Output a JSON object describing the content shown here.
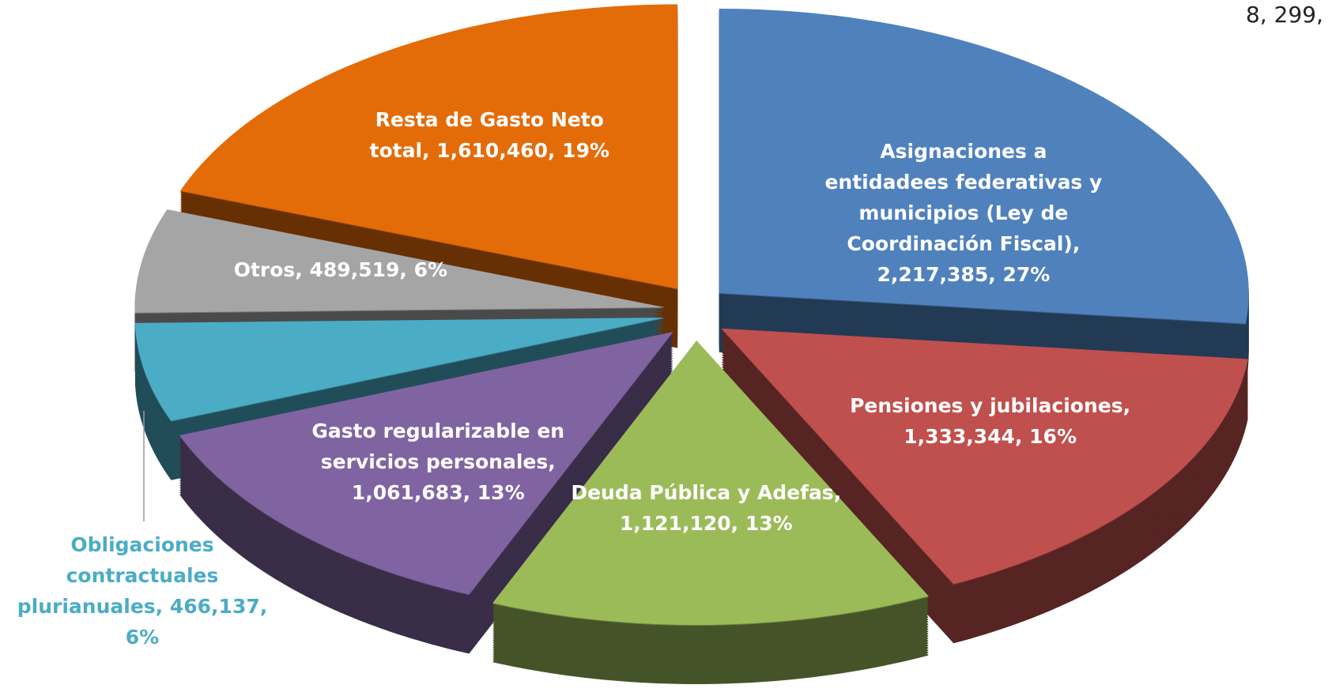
{
  "chart_data": {
    "type": "pie3d",
    "corner_text": "8, 299,",
    "categories": [
      "Asignaciones a entidadees federativas y municipios (Ley de Coordinación Fiscal)",
      "Pensiones y jubilaciones",
      "Deuda Pública y Adefas",
      "Gasto regularizable en servicios personales",
      "Obligaciones contractuales plurianuales",
      "Otros",
      "Resta de Gasto Neto total"
    ],
    "values": [
      2217385,
      1333344,
      1121120,
      1061683,
      466137,
      489519,
      1610460
    ],
    "value_labels": [
      "Asignaciones a entidadees federativas y municipios (Ley de Coordinación Fiscal), 2,217,385, 27%",
      "Pensiones y jubilaciones, 1,333,344, 16%",
      "Deuda Pública y Adefas, 1,121,120, 13%",
      "Gasto regularizable en servicios personales, 1,061,683, 13%",
      "Obligaciones contractuales plurianuales, 466,137, 6%",
      "Otros, 489,519, 6%",
      "Resta de Gasto Neto total, 1,610,460, 19%"
    ],
    "colors": [
      "#4f81bd",
      "#c0504d",
      "#9bbb59",
      "#8064a2",
      "#4bacc6",
      "#a5a5a5",
      "#e36c09"
    ]
  }
}
